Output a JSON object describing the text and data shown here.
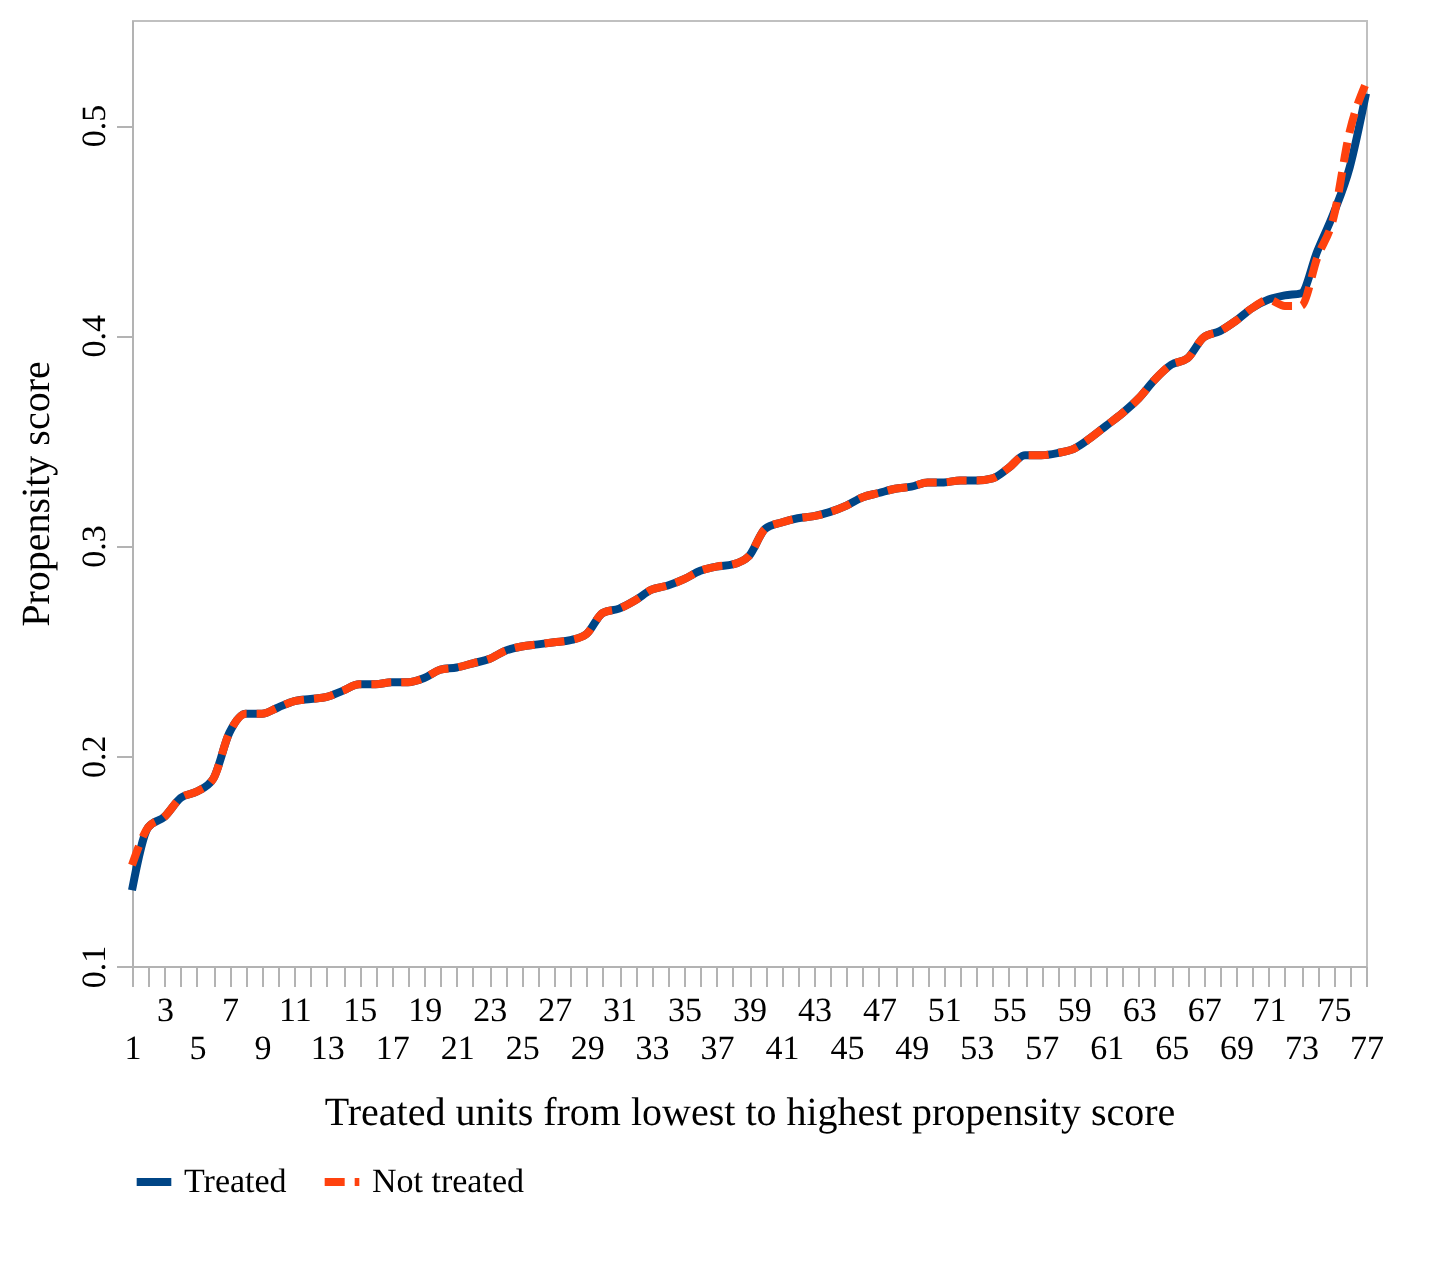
{
  "chart_data": {
    "type": "line",
    "xlabel": "Treated units from lowest to highest propensity score",
    "ylabel": "Propensity score",
    "categories": [
      "1",
      null,
      "3",
      null,
      "5",
      null,
      "7",
      null,
      "9",
      null,
      "11",
      null,
      "13",
      null,
      "15",
      null,
      "17",
      null,
      "19",
      null,
      "21",
      null,
      "23",
      null,
      "25",
      null,
      "27",
      null,
      "29",
      null,
      "31",
      null,
      "33",
      null,
      "35",
      null,
      "37",
      null,
      "39",
      null,
      "41",
      null,
      "43",
      null,
      "45",
      null,
      "47",
      null,
      "49",
      null,
      "51",
      null,
      "53",
      null,
      "55",
      null,
      "57",
      null,
      "59",
      null,
      "61",
      null,
      "63",
      null,
      "65",
      null,
      "67",
      null,
      "69",
      null,
      "71",
      null,
      "73",
      null,
      "75",
      null,
      "77"
    ],
    "series": [
      {
        "name": "Treated",
        "color": "#004586",
        "line_style": "solid",
        "values": [
          0.136,
          0.166,
          0.171,
          0.18,
          0.183,
          0.189,
          0.211,
          0.22,
          0.22,
          0.223,
          0.226,
          0.227,
          0.228,
          0.231,
          0.234,
          0.234,
          0.235,
          0.235,
          0.237,
          0.241,
          0.242,
          0.244,
          0.246,
          0.25,
          0.252,
          0.253,
          0.254,
          0.255,
          0.258,
          0.268,
          0.27,
          0.274,
          0.279,
          0.281,
          0.284,
          0.288,
          0.29,
          0.291,
          0.295,
          0.308,
          0.311,
          0.313,
          0.314,
          0.316,
          0.319,
          0.323,
          0.325,
          0.327,
          0.328,
          0.33,
          0.33,
          0.331,
          0.331,
          0.332,
          0.337,
          0.343,
          0.343,
          0.344,
          0.346,
          0.351,
          0.357,
          0.363,
          0.37,
          0.379,
          0.386,
          0.389,
          0.399,
          0.402,
          0.407,
          0.413,
          0.417,
          0.419,
          0.42,
          0.44,
          0.458,
          0.48,
          0.515
        ]
      },
      {
        "name": "Not treated",
        "color": "#ff420e",
        "line_style": "dashed",
        "values": [
          0.148,
          0.166,
          0.171,
          0.18,
          0.183,
          0.189,
          0.211,
          0.22,
          0.22,
          0.223,
          0.226,
          0.227,
          0.228,
          0.231,
          0.234,
          0.234,
          0.235,
          0.235,
          0.237,
          0.241,
          0.242,
          0.244,
          0.246,
          0.25,
          0.252,
          0.253,
          0.254,
          0.255,
          0.258,
          0.268,
          0.27,
          0.274,
          0.279,
          0.281,
          0.284,
          0.288,
          0.29,
          0.291,
          0.295,
          0.308,
          0.311,
          0.313,
          0.314,
          0.316,
          0.319,
          0.323,
          0.325,
          0.327,
          0.328,
          0.33,
          0.33,
          0.331,
          0.331,
          0.332,
          0.337,
          0.343,
          0.343,
          0.344,
          0.346,
          0.351,
          0.357,
          0.363,
          0.37,
          0.379,
          0.386,
          0.389,
          0.399,
          0.402,
          0.407,
          0.413,
          0.417,
          0.414,
          0.414,
          0.437,
          0.456,
          0.497,
          0.52
        ]
      }
    ],
    "ylim": [
      0.1,
      0.55
    ],
    "yticks": [
      0.1,
      0.2,
      0.3,
      0.4,
      0.5
    ],
    "grid": false,
    "legend": "bottom",
    "marker": "none"
  }
}
